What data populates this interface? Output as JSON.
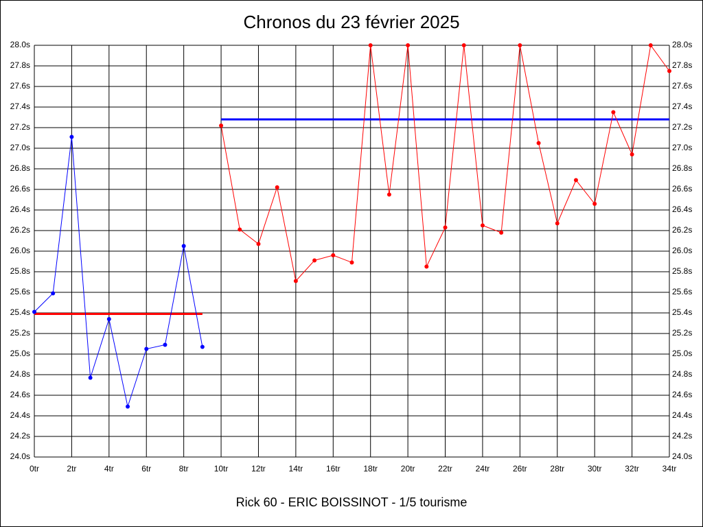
{
  "chart_data": {
    "type": "line",
    "title": "Chronos du 23 février 2025",
    "subtitle": "Rick 60 - ERIC BOISSINOT - 1/5 tourisme",
    "xlim": [
      0,
      34
    ],
    "ylim": [
      24,
      28
    ],
    "grid": true,
    "xticks": [
      {
        "value": 0,
        "label": "0tr"
      },
      {
        "value": 2,
        "label": "2tr"
      },
      {
        "value": 4,
        "label": "4tr"
      },
      {
        "value": 6,
        "label": "6tr"
      },
      {
        "value": 8,
        "label": "8tr"
      },
      {
        "value": 10,
        "label": "10tr"
      },
      {
        "value": 12,
        "label": "12tr"
      },
      {
        "value": 14,
        "label": "14tr"
      },
      {
        "value": 16,
        "label": "16tr"
      },
      {
        "value": 18,
        "label": "18tr"
      },
      {
        "value": 20,
        "label": "20tr"
      },
      {
        "value": 22,
        "label": "22tr"
      },
      {
        "value": 24,
        "label": "24tr"
      },
      {
        "value": 26,
        "label": "26tr"
      },
      {
        "value": 28,
        "label": "28tr"
      },
      {
        "value": 30,
        "label": "30tr"
      },
      {
        "value": 32,
        "label": "32tr"
      },
      {
        "value": 34,
        "label": "34tr"
      }
    ],
    "yticks": [
      {
        "value": 24.0,
        "label": "24.0s"
      },
      {
        "value": 24.2,
        "label": "24.2s"
      },
      {
        "value": 24.4,
        "label": "24.4s"
      },
      {
        "value": 24.6,
        "label": "24.6s"
      },
      {
        "value": 24.8,
        "label": "24.8s"
      },
      {
        "value": 25.0,
        "label": "25.0s"
      },
      {
        "value": 25.2,
        "label": "25.2s"
      },
      {
        "value": 25.4,
        "label": "25.4s"
      },
      {
        "value": 25.6,
        "label": "25.6s"
      },
      {
        "value": 25.8,
        "label": "25.8s"
      },
      {
        "value": 26.0,
        "label": "26.0s"
      },
      {
        "value": 26.2,
        "label": "26.2s"
      },
      {
        "value": 26.4,
        "label": "26.4s"
      },
      {
        "value": 26.6,
        "label": "26.6s"
      },
      {
        "value": 26.8,
        "label": "26.8s"
      },
      {
        "value": 27.0,
        "label": "27.0s"
      },
      {
        "value": 27.2,
        "label": "27.2s"
      },
      {
        "value": 27.4,
        "label": "27.4s"
      },
      {
        "value": 27.6,
        "label": "27.6s"
      },
      {
        "value": 27.8,
        "label": "27.8s"
      },
      {
        "value": 28.0,
        "label": "28.0s"
      }
    ],
    "series": [
      {
        "color": "#0000ff",
        "x": [
          0,
          1,
          2,
          3,
          4,
          5,
          6,
          7,
          8,
          9
        ],
        "values": [
          25.41,
          25.59,
          27.11,
          24.77,
          25.34,
          24.49,
          25.05,
          25.09,
          26.05,
          25.07
        ]
      },
      {
        "color": "#ff0000",
        "x": [
          10,
          11,
          12,
          13,
          14,
          15,
          16,
          17,
          18,
          19,
          20,
          21,
          22,
          23,
          24,
          25,
          26,
          27,
          28,
          29,
          30,
          31,
          32,
          33,
          34
        ],
        "values": [
          27.22,
          26.21,
          26.07,
          26.62,
          25.71,
          25.91,
          25.96,
          25.89,
          28.0,
          26.55,
          28.0,
          25.85,
          26.23,
          28.0,
          26.25,
          26.18,
          28.0,
          27.05,
          26.27,
          26.69,
          26.46,
          27.35,
          26.94,
          28.0,
          27.75
        ]
      }
    ],
    "averages": [
      {
        "color": "#ff0000",
        "x": [
          0,
          9
        ],
        "value": 25.39
      },
      {
        "color": "#0000ff",
        "x": [
          10,
          34
        ],
        "value": 27.28
      }
    ]
  }
}
